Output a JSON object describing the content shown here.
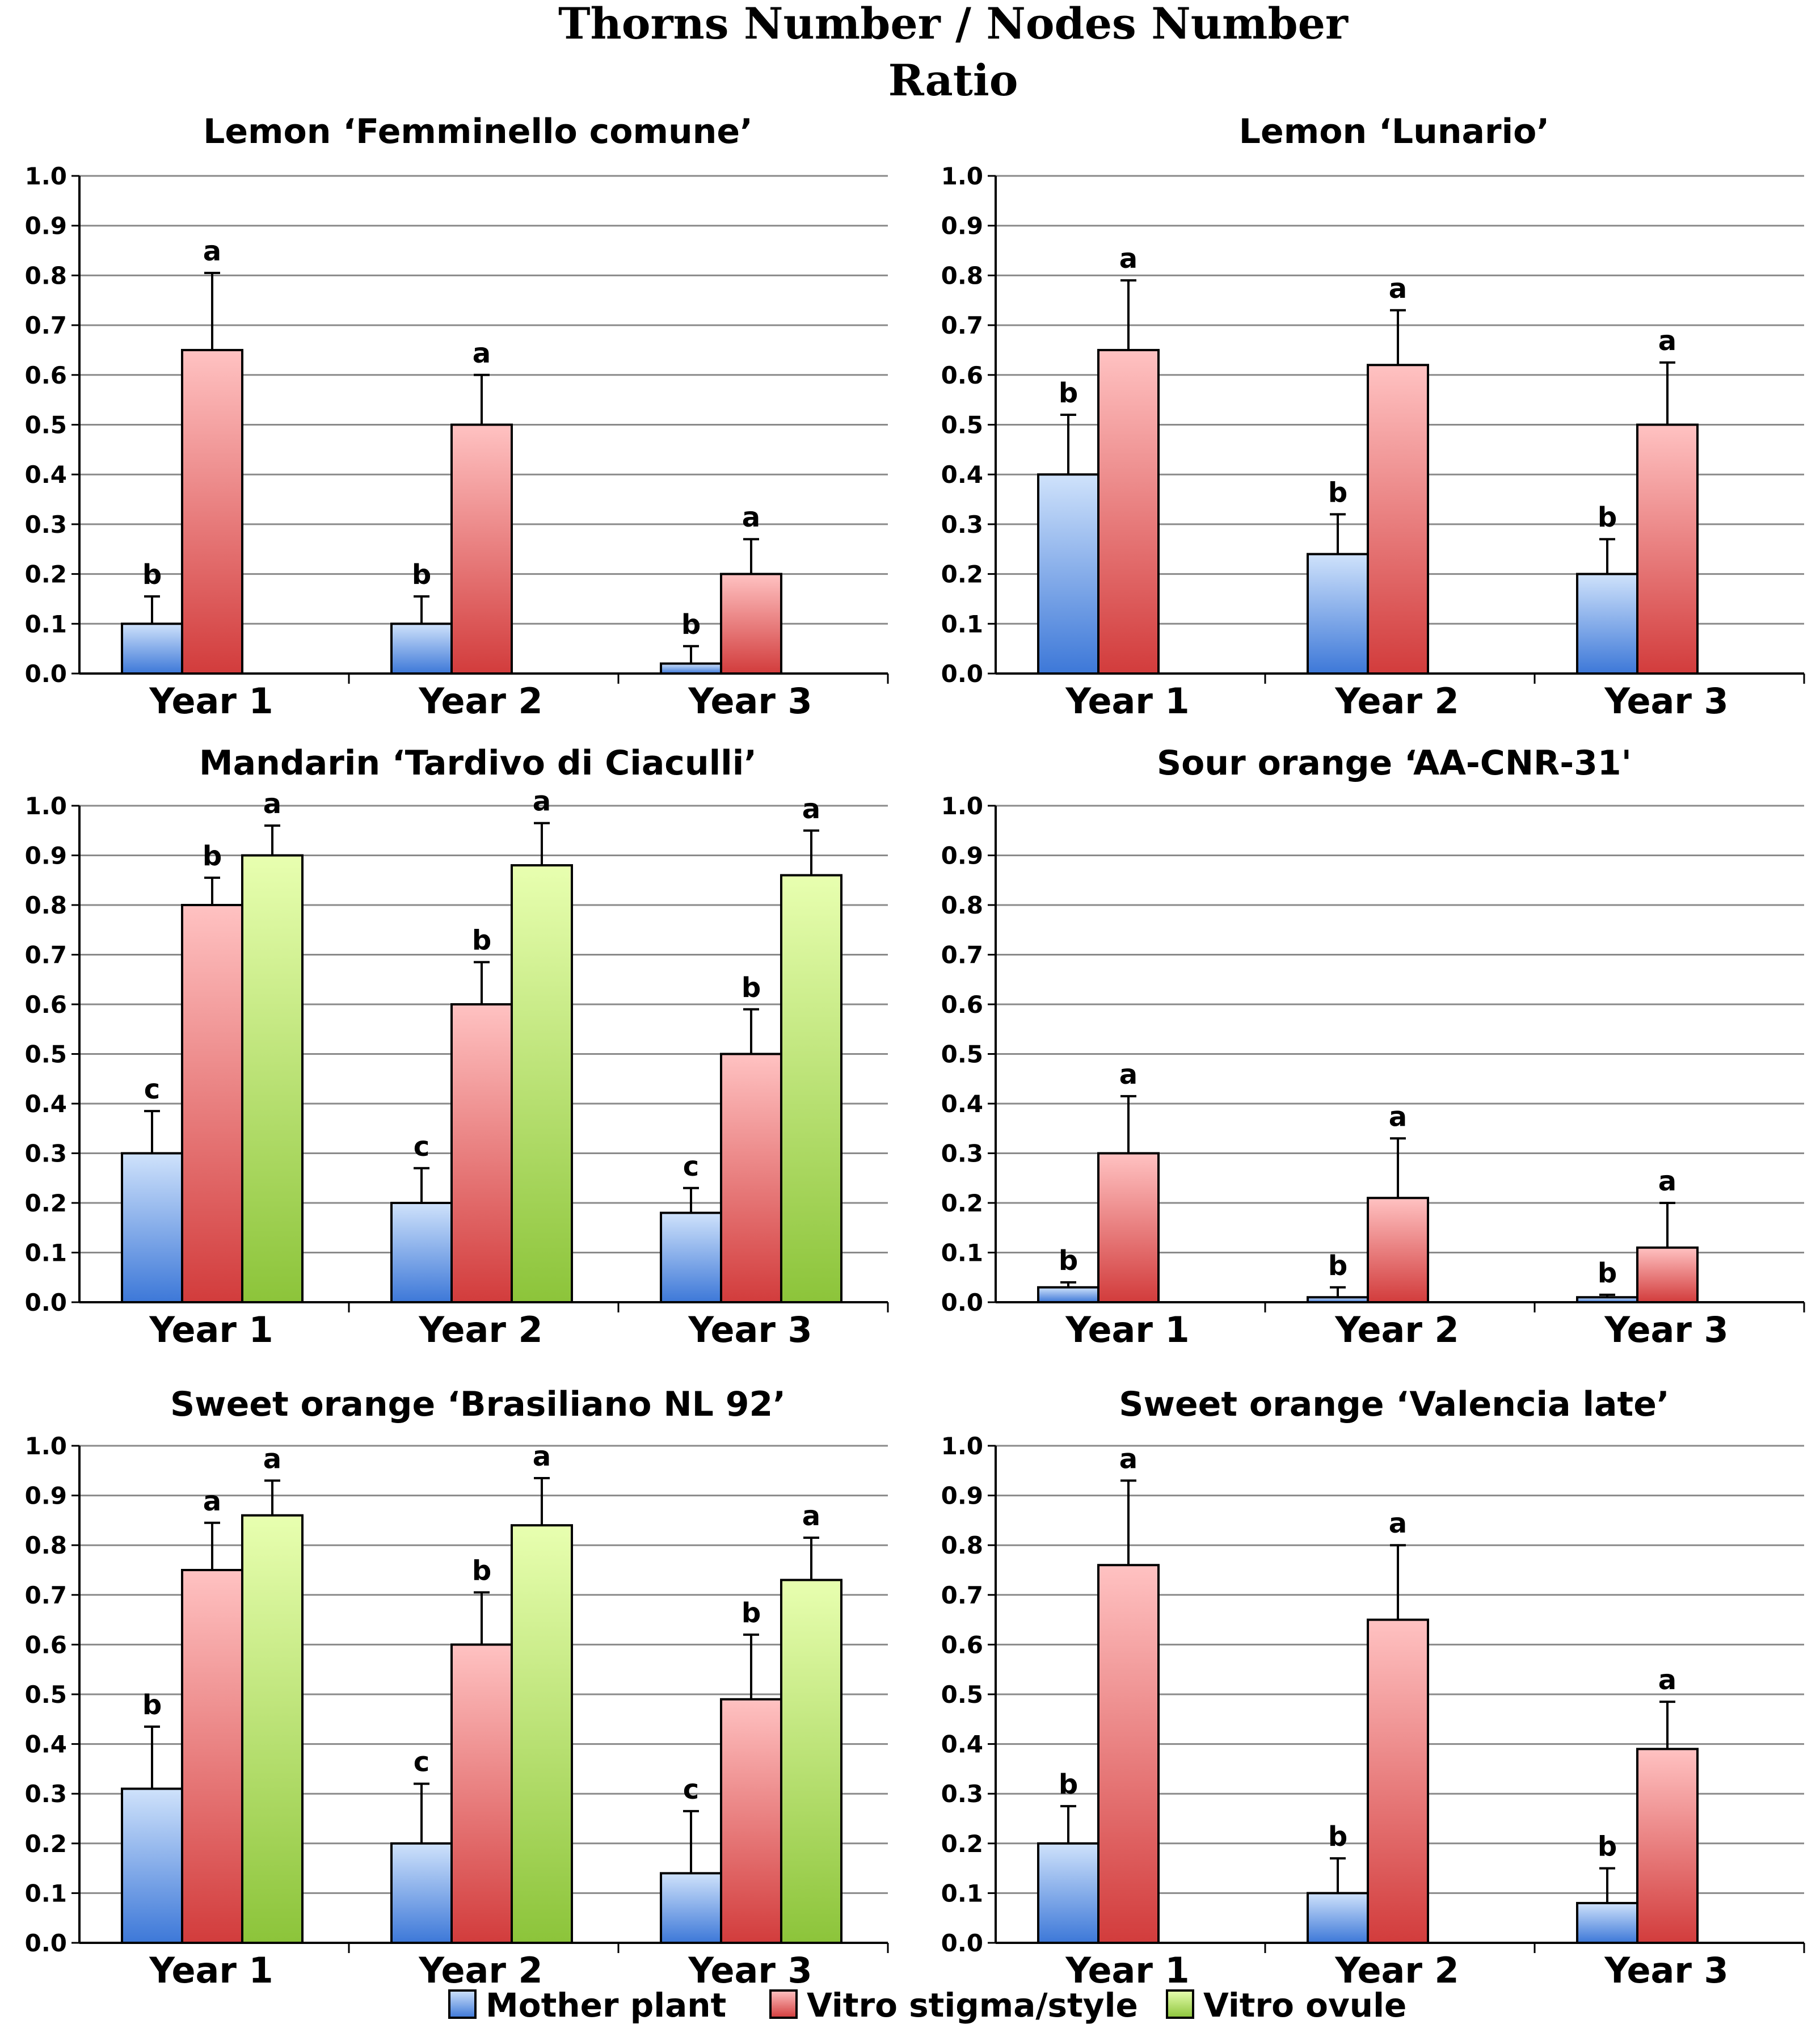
{
  "figure_title": {
    "line1": "Thorns Number / Nodes Number",
    "line2": "Ratio"
  },
  "colors": {
    "Mother plant": [
      "#cfe2fb",
      "#3d78d8"
    ],
    "Vitro stigma/style": [
      "#ffc2c2",
      "#d23c3c"
    ],
    "Vitro ovule": [
      "#e8ffb0",
      "#8cc43a"
    ]
  },
  "legend": [
    "Mother plant",
    "Vitro stigma/style",
    "Vitro ovule"
  ],
  "chart_data": [
    {
      "type": "bar",
      "title": "Lemon ‘Femminello comune’",
      "categories": [
        "Year 1",
        "Year 2",
        "Year 3"
      ],
      "ylim": [
        0,
        1.0
      ],
      "yticks": [
        "0.0",
        "0.1",
        "0.2",
        "0.3",
        "0.4",
        "0.5",
        "0.6",
        "0.7",
        "0.8",
        "0.9",
        "1.0"
      ],
      "grid": true,
      "series": [
        {
          "name": "Mother plant",
          "values": [
            0.1,
            0.1,
            0.02
          ],
          "errors": [
            0.055,
            0.055,
            0.035
          ],
          "letters": [
            "b",
            "b",
            "b"
          ]
        },
        {
          "name": "Vitro stigma/style",
          "values": [
            0.65,
            0.5,
            0.2
          ],
          "errors": [
            0.155,
            0.1,
            0.07
          ],
          "letters": [
            "a",
            "a",
            "a"
          ]
        }
      ]
    },
    {
      "type": "bar",
      "title": "Lemon ‘Lunario’",
      "categories": [
        "Year 1",
        "Year 2",
        "Year 3"
      ],
      "ylim": [
        0,
        1.0
      ],
      "yticks": [
        "0.0",
        "0.1",
        "0.2",
        "0.3",
        "0.4",
        "0.5",
        "0.6",
        "0.7",
        "0.8",
        "0.9",
        "1.0"
      ],
      "grid": true,
      "series": [
        {
          "name": "Mother plant",
          "values": [
            0.4,
            0.24,
            0.2
          ],
          "errors": [
            0.12,
            0.08,
            0.07
          ],
          "letters": [
            "b",
            "b",
            "b"
          ]
        },
        {
          "name": "Vitro stigma/style",
          "values": [
            0.65,
            0.62,
            0.5
          ],
          "errors": [
            0.14,
            0.11,
            0.125
          ],
          "letters": [
            "a",
            "a",
            "a"
          ]
        }
      ]
    },
    {
      "type": "bar",
      "title": "Mandarin ‘Tardivo di Ciaculli’",
      "categories": [
        "Year 1",
        "Year 2",
        "Year 3"
      ],
      "ylim": [
        0,
        1.0
      ],
      "yticks": [
        "0.0",
        "0.1",
        "0.2",
        "0.3",
        "0.4",
        "0.5",
        "0.6",
        "0.7",
        "0.8",
        "0.9",
        "1.0"
      ],
      "grid": true,
      "series": [
        {
          "name": "Mother plant",
          "values": [
            0.3,
            0.2,
            0.18
          ],
          "errors": [
            0.085,
            0.07,
            0.05
          ],
          "letters": [
            "c",
            "c",
            "c"
          ]
        },
        {
          "name": "Vitro stigma/style",
          "values": [
            0.8,
            0.6,
            0.5
          ],
          "errors": [
            0.055,
            0.085,
            0.09
          ],
          "letters": [
            "b",
            "b",
            "b"
          ]
        },
        {
          "name": "Vitro ovule",
          "values": [
            0.9,
            0.88,
            0.86
          ],
          "errors": [
            0.06,
            0.085,
            0.09
          ],
          "letters": [
            "a",
            "a",
            "a"
          ]
        }
      ]
    },
    {
      "type": "bar",
      "title": "Sour orange ‘AA-CNR-31'",
      "categories": [
        "Year 1",
        "Year 2",
        "Year 3"
      ],
      "ylim": [
        0,
        1.0
      ],
      "yticks": [
        "0.0",
        "0.1",
        "0.2",
        "0.3",
        "0.4",
        "0.5",
        "0.6",
        "0.7",
        "0.8",
        "0.9",
        "1.0"
      ],
      "grid": true,
      "series": [
        {
          "name": "Mother plant",
          "values": [
            0.03,
            0.01,
            0.01
          ],
          "errors": [
            0.01,
            0.02,
            0.005
          ],
          "letters": [
            "b",
            "b",
            "b"
          ]
        },
        {
          "name": "Vitro stigma/style",
          "values": [
            0.3,
            0.21,
            0.11
          ],
          "errors": [
            0.115,
            0.12,
            0.09
          ],
          "letters": [
            "a",
            "a",
            "a"
          ]
        }
      ]
    },
    {
      "type": "bar",
      "title": "Sweet orange ‘Brasiliano NL 92’",
      "categories": [
        "Year 1",
        "Year 2",
        "Year 3"
      ],
      "ylim": [
        0,
        1.0
      ],
      "yticks": [
        "0.0",
        "0.1",
        "0.2",
        "0.3",
        "0.4",
        "0.5",
        "0.6",
        "0.7",
        "0.8",
        "0.9",
        "1.0"
      ],
      "grid": true,
      "series": [
        {
          "name": "Mother plant",
          "values": [
            0.31,
            0.2,
            0.14
          ],
          "errors": [
            0.125,
            0.12,
            0.125
          ],
          "letters": [
            "b",
            "c",
            "c"
          ]
        },
        {
          "name": "Vitro stigma/style",
          "values": [
            0.75,
            0.6,
            0.49
          ],
          "errors": [
            0.095,
            0.105,
            0.13
          ],
          "letters": [
            "a",
            "b",
            "b"
          ]
        },
        {
          "name": "Vitro ovule",
          "values": [
            0.86,
            0.84,
            0.73
          ],
          "errors": [
            0.07,
            0.095,
            0.085
          ],
          "letters": [
            "a",
            "a",
            "a"
          ]
        }
      ]
    },
    {
      "type": "bar",
      "title": "Sweet orange ‘Valencia late’",
      "categories": [
        "Year 1",
        "Year 2",
        "Year 3"
      ],
      "ylim": [
        0,
        1.0
      ],
      "yticks": [
        "0.0",
        "0.1",
        "0.2",
        "0.3",
        "0.4",
        "0.5",
        "0.6",
        "0.7",
        "0.8",
        "0.9",
        "1.0"
      ],
      "grid": true,
      "series": [
        {
          "name": "Mother plant",
          "values": [
            0.2,
            0.1,
            0.08
          ],
          "errors": [
            0.075,
            0.07,
            0.07
          ],
          "letters": [
            "b",
            "b",
            "b"
          ]
        },
        {
          "name": "Vitro stigma/style",
          "values": [
            0.76,
            0.65,
            0.39
          ],
          "errors": [
            0.17,
            0.15,
            0.095
          ],
          "letters": [
            "a",
            "a",
            "a"
          ]
        }
      ]
    }
  ]
}
